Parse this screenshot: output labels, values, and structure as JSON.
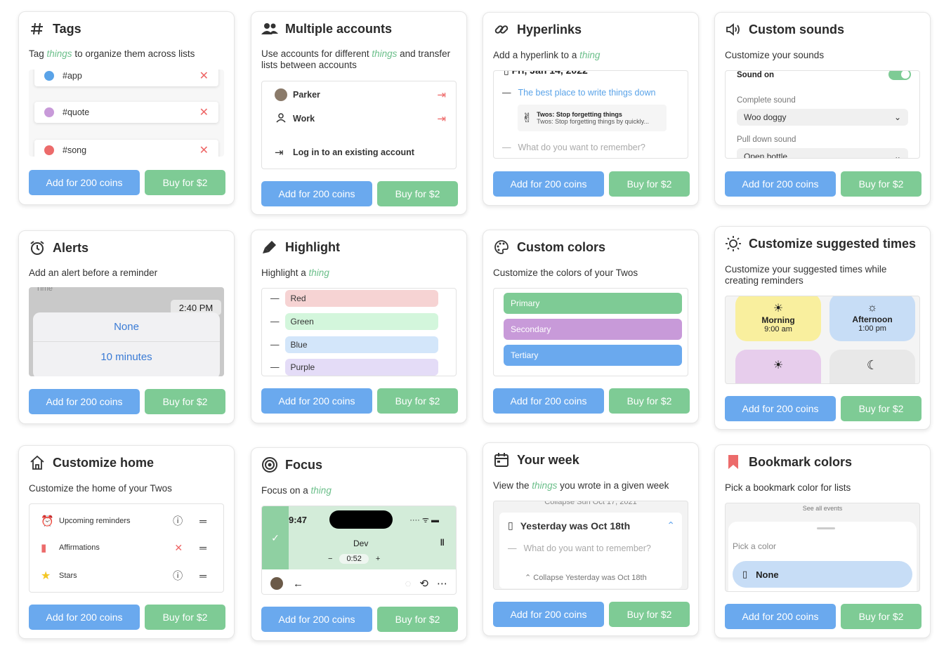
{
  "buttons": {
    "coins": "Add for 200 coins",
    "buy": "Buy for $2"
  },
  "colors": {
    "blue": "#6aa9ee",
    "green": "#7ecb95",
    "accent_text": "#6bbf8a",
    "red": "#e66666"
  },
  "tags": {
    "title": "Tags",
    "desc_pre": "Tag ",
    "desc_em": "things",
    "desc_post": " to organize them across lists",
    "items": [
      {
        "label": "#app",
        "color": "#5aa3e8"
      },
      {
        "label": "#quote",
        "color": "#c89ad9"
      },
      {
        "label": "#song",
        "color": "#ec6b6b"
      }
    ]
  },
  "accounts": {
    "title": "Multiple accounts",
    "desc_pre": "Use accounts for different ",
    "desc_em": "things",
    "desc_post": " and transfer lists between accounts",
    "items": [
      "Parker",
      "Work"
    ],
    "login": "Log in to an existing account"
  },
  "hyperlinks": {
    "title": "Hyperlinks",
    "desc_pre": "Add a hyperlink to a ",
    "desc_em": "thing",
    "date": "Fri, Jan 14, 2022",
    "link_text": "The best place to write things down",
    "preview_title": "Twos: Stop forgetting things",
    "preview_sub": "Twos: Stop forgetting things by quickly...",
    "placeholder": "What do you want to remember?"
  },
  "sounds": {
    "title": "Custom sounds",
    "desc": "Customize your sounds",
    "sound_on": "Sound on",
    "complete_label": "Complete sound",
    "complete_value": "Woo doggy",
    "pull_label": "Pull down sound",
    "pull_value": "Open bottle"
  },
  "alerts": {
    "title": "Alerts",
    "desc": "Add an alert before a reminder",
    "time_label": "Time",
    "time_value": "2:40 PM",
    "opt1": "None",
    "opt2": "10 minutes"
  },
  "highlight": {
    "title": "Highlight",
    "desc_pre": "Highlight a ",
    "desc_em": "thing",
    "items": [
      {
        "label": "Red",
        "color": "#f6d3d3"
      },
      {
        "label": "Green",
        "color": "#d3f6dc"
      },
      {
        "label": "Blue",
        "color": "#d3e6fa"
      },
      {
        "label": "Purple",
        "color": "#e4dcf7"
      }
    ]
  },
  "custom_colors": {
    "title": "Custom colors",
    "desc": "Customize the colors of your Twos",
    "items": [
      {
        "label": "Primary",
        "color": "#7ecb95"
      },
      {
        "label": "Secondary",
        "color": "#c89ad9"
      },
      {
        "label": "Tertiary",
        "color": "#6aa9ee"
      }
    ]
  },
  "suggested": {
    "title": "Customize suggested times",
    "desc": "Customize your suggested times while creating reminders",
    "items": [
      {
        "label": "Morning",
        "time": "9:00 am",
        "color": "#f9ef9e"
      },
      {
        "label": "Afternoon",
        "time": "1:00 pm",
        "color": "#c7ddf6"
      },
      {
        "label": "",
        "time": "",
        "color": "#e7cdec"
      },
      {
        "label": "",
        "time": "",
        "color": "#e8e8e8"
      }
    ]
  },
  "home": {
    "title": "Customize home",
    "desc": "Customize the home of your Twos",
    "items": [
      "Upcoming reminders",
      "Affirmations",
      "Stars"
    ]
  },
  "focus": {
    "title": "Focus",
    "desc_pre": "Focus on a ",
    "desc_em": "thing",
    "clock": "9:47",
    "task": "Dev",
    "timer": "0:52"
  },
  "week": {
    "title": "Your week",
    "desc_pre": "View the ",
    "desc_em": "things",
    "desc_post": " you wrote in a given week",
    "collapse_top": "Collapse Sun Oct 17, 2021",
    "day": "Yesterday was Oct 18th",
    "placeholder": "What do you want to remember?",
    "collapse_bottom": "Collapse Yesterday was Oct 18th"
  },
  "bookmark": {
    "title": "Bookmark colors",
    "desc": "Pick a bookmark color for lists",
    "see_all": "See all events",
    "pick_label": "Pick a color",
    "none_label": "None"
  }
}
